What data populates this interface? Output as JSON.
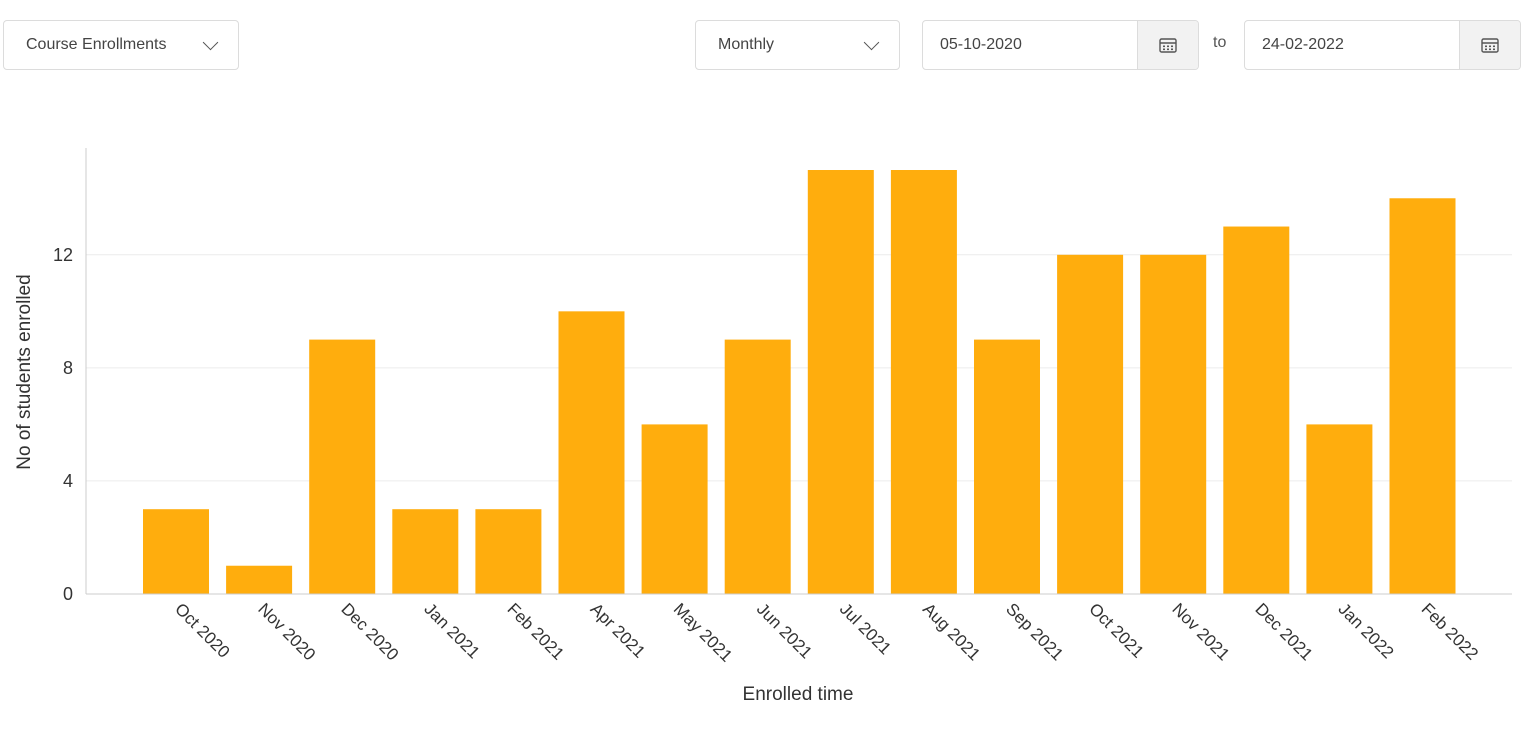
{
  "controls": {
    "report_select": "Course Enrollments",
    "period_select": "Monthly",
    "date_from": "05-10-2020",
    "to_label": "to",
    "date_to": "24-02-2022",
    "calendar_icon": "calendar-icon"
  },
  "colors": {
    "bar": "#FFAD0D",
    "grid": "#ececec",
    "axis": "#cccccc"
  },
  "chart_data": {
    "type": "bar",
    "categories": [
      "Oct 2020",
      "Nov 2020",
      "Dec 2020",
      "Jan 2021",
      "Feb 2021",
      "Apr 2021",
      "May 2021",
      "Jun 2021",
      "Jul 2021",
      "Aug 2021",
      "Sep 2021",
      "Oct 2021",
      "Nov 2021",
      "Dec 2021",
      "Jan 2022",
      "Feb 2022"
    ],
    "values": [
      3,
      1,
      9,
      3,
      3,
      10,
      6,
      9,
      15,
      15,
      9,
      12,
      12,
      13,
      6,
      14
    ],
    "yticks": [
      0,
      4,
      8,
      12
    ],
    "ylim": [
      0,
      15.75
    ],
    "xlabel": "Enrolled time",
    "ylabel": "No of students enrolled",
    "grid": true
  }
}
